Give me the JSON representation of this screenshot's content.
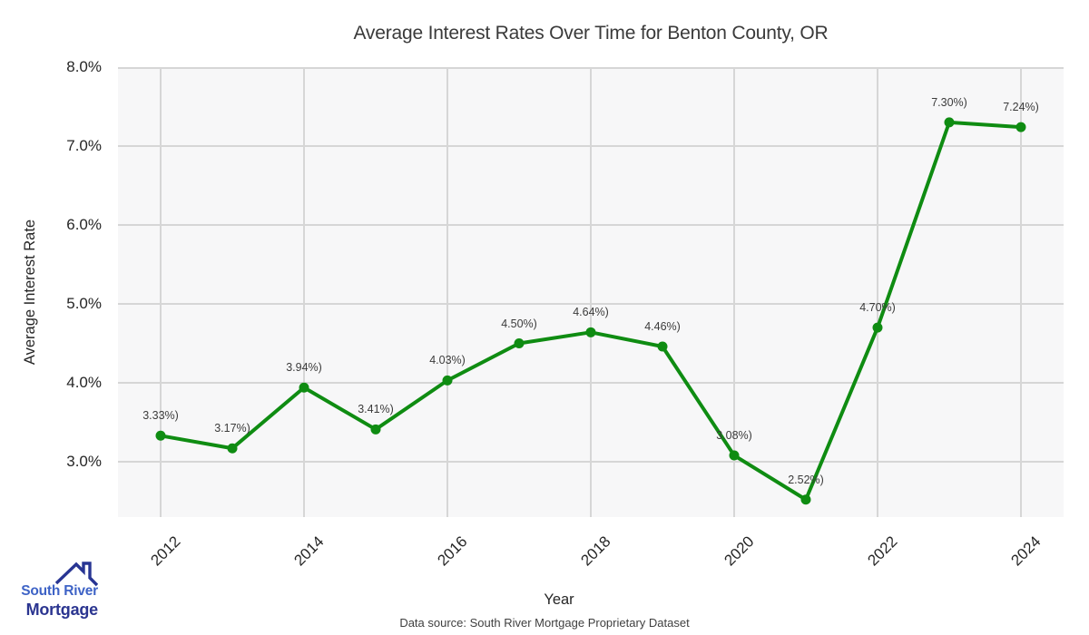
{
  "title": "Average Interest Rates Over Time for Benton County, OR",
  "y_axis": {
    "label": "Average Interest Rate",
    "ticks": [
      "8.0%",
      "7.0%",
      "6.0%",
      "5.0%",
      "4.0%",
      "3.0%"
    ],
    "tick_values": [
      8.0,
      7.0,
      6.0,
      5.0,
      4.0,
      3.0
    ]
  },
  "x_axis": {
    "label": "Year",
    "ticks": [
      "2012",
      "2014",
      "2016",
      "2018",
      "2020",
      "2022",
      "2024"
    ],
    "tick_values": [
      2012,
      2014,
      2016,
      2018,
      2020,
      2022,
      2024
    ]
  },
  "footer": {
    "text": "Data source: South River Mortgage Proprietary Dataset"
  },
  "logo": {
    "line1": "South River",
    "line2": "Mortgage",
    "line1_color": "#3E63C6",
    "line2_color": "#2B3590",
    "roof_color": "#283593"
  },
  "chart_data": {
    "type": "line",
    "title": "Average Interest Rates Over Time for Benton County, OR",
    "xlabel": "Year",
    "ylabel": "Average Interest Rate",
    "x": [
      2012,
      2013,
      2014,
      2015,
      2016,
      2017,
      2018,
      2019,
      2020,
      2021,
      2022,
      2023,
      2024
    ],
    "values": [
      3.33,
      3.17,
      3.94,
      3.41,
      4.03,
      4.5,
      4.64,
      4.46,
      3.08,
      2.52,
      4.7,
      7.3,
      7.24
    ],
    "point_labels": [
      "3.33%)",
      "3.17%)",
      "3.94%)",
      "3.41%)",
      "4.03%)",
      "4.50%)",
      "4.64%)",
      "4.46%)",
      "3.08%)",
      "2.52%)",
      "4.70%)",
      "7.30%)",
      "7.24%)"
    ],
    "ylim": [
      2.3,
      8.0
    ],
    "grid": true,
    "legend": "none",
    "line_color": "#0f8c12",
    "grid_color": "#d6d6d6",
    "plot_bg": "#f7f7f8"
  }
}
